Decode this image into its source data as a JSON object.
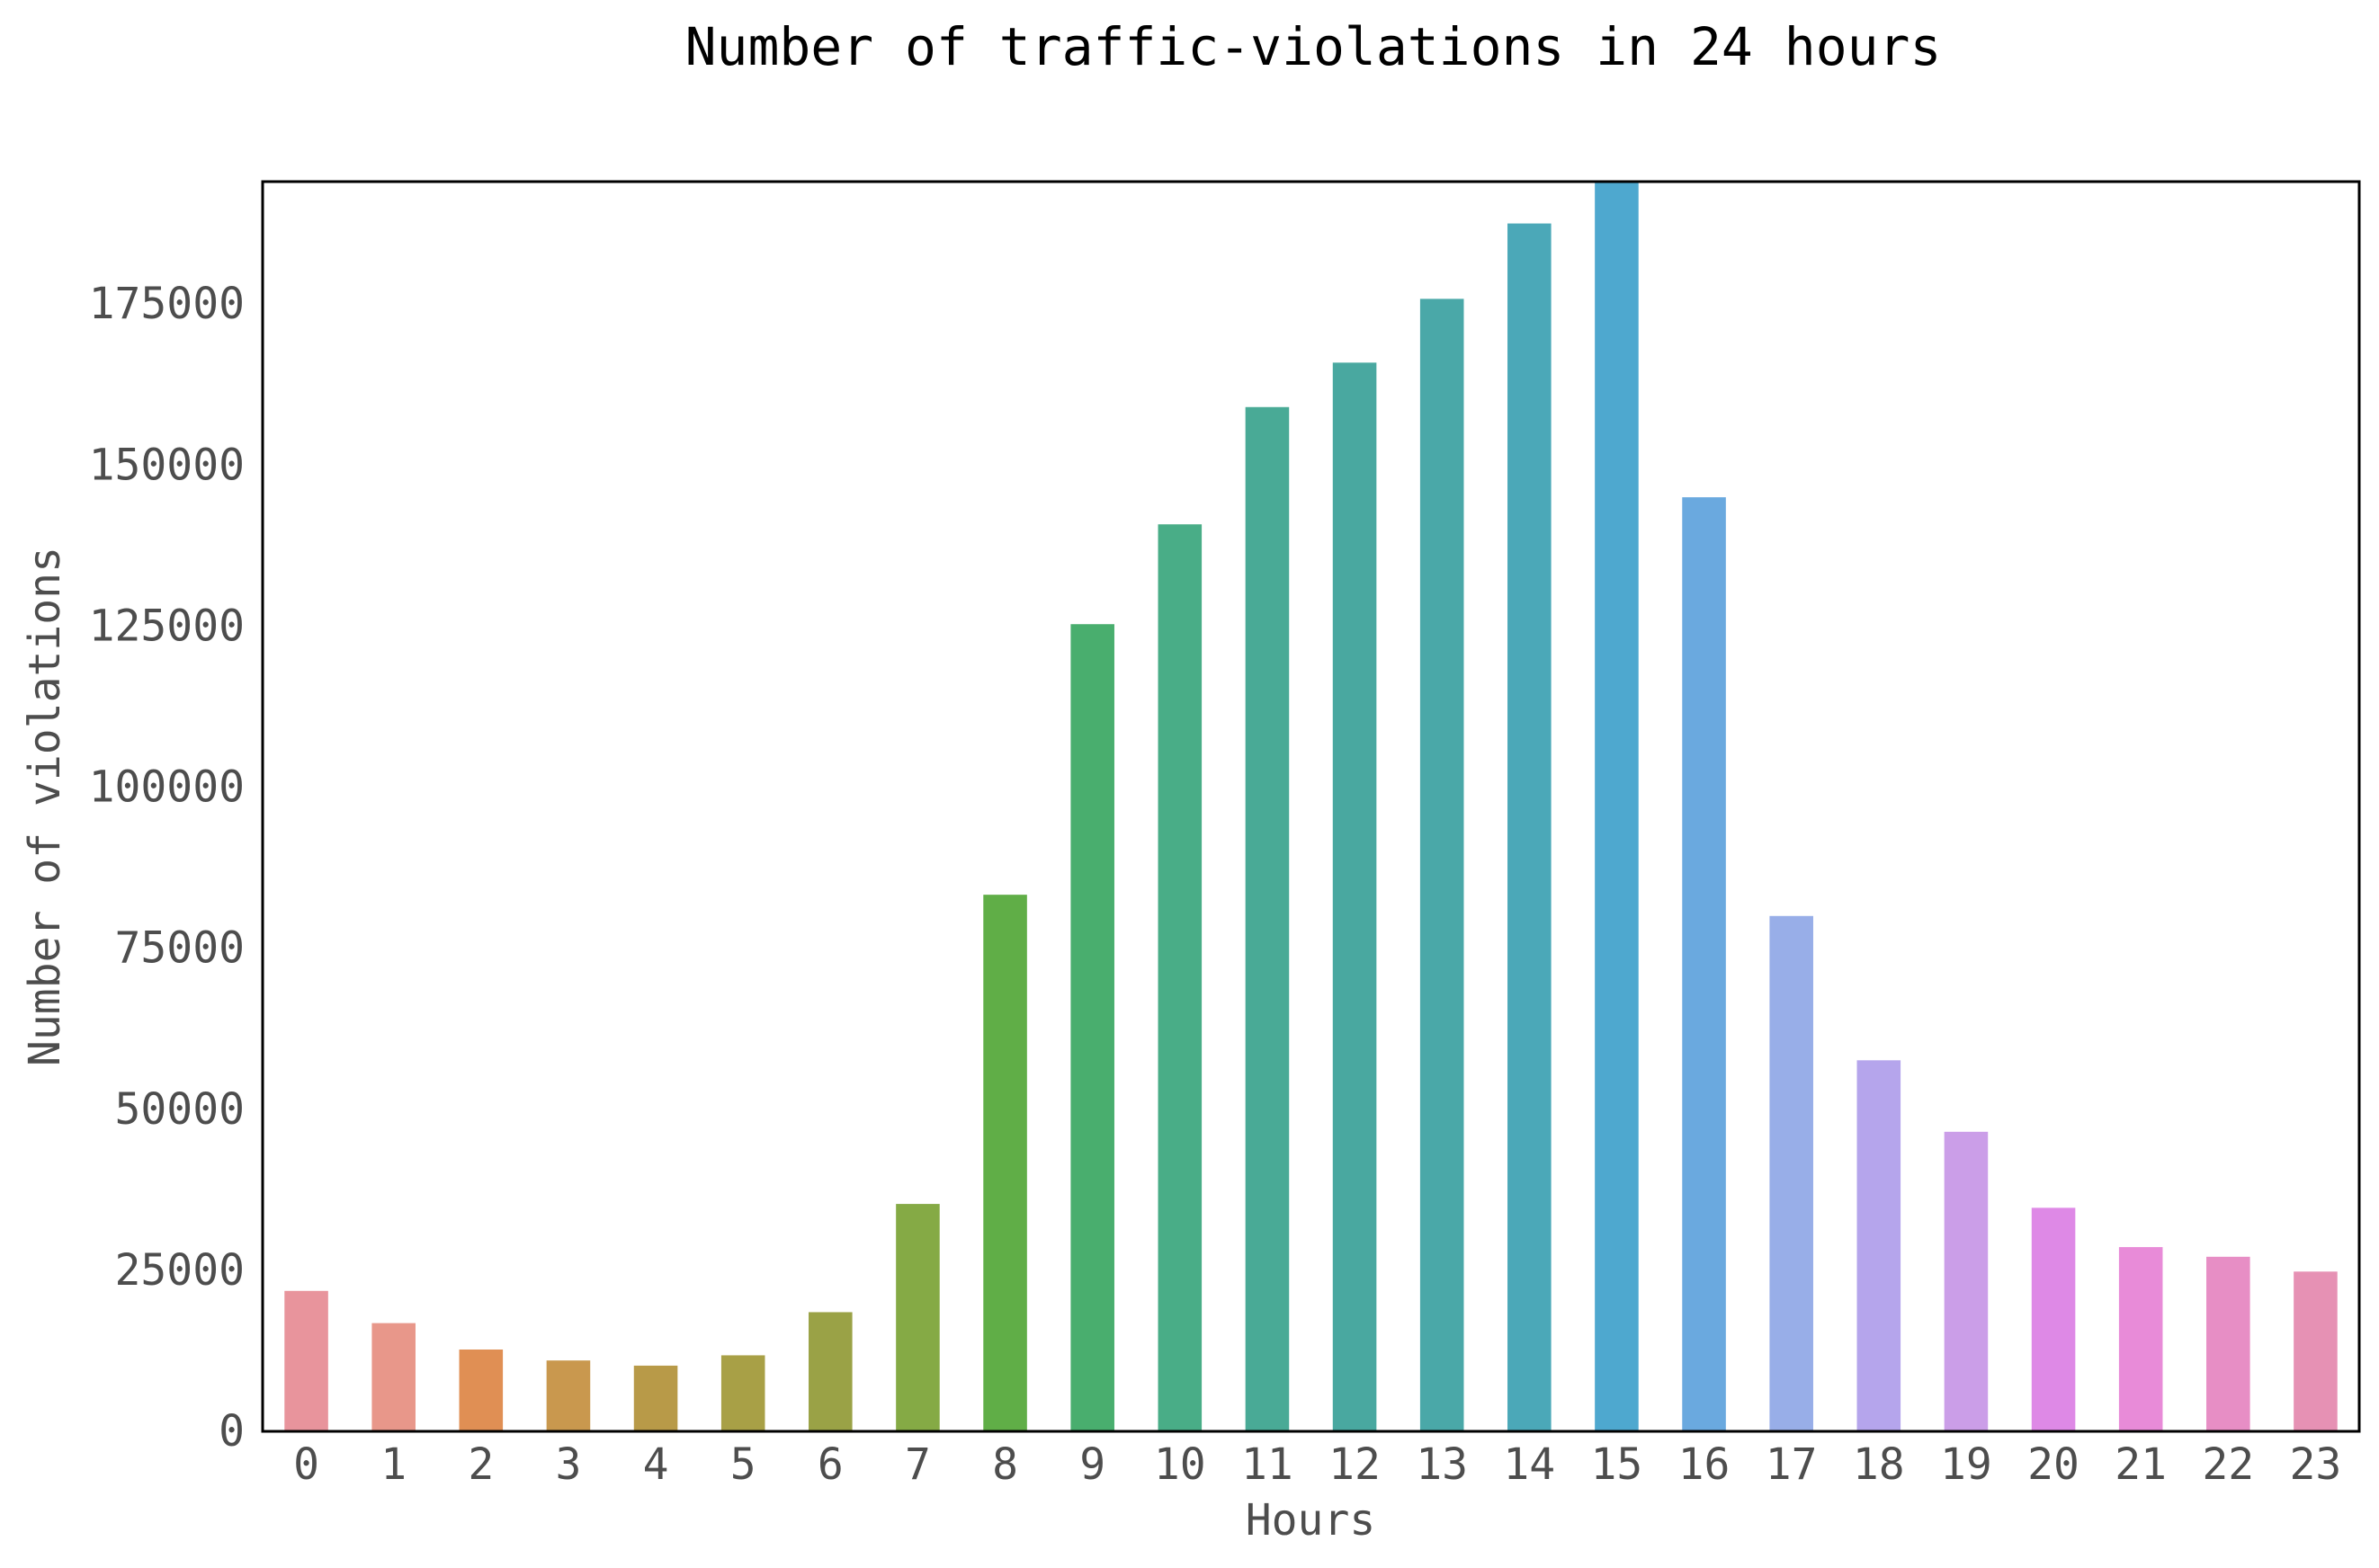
{
  "chart_data": {
    "type": "bar",
    "title": "Number of traffic-violations in 24 hours",
    "xlabel": "Hours",
    "ylabel": "Number of violations",
    "categories": [
      "0",
      "1",
      "2",
      "3",
      "4",
      "5",
      "6",
      "7",
      "8",
      "9",
      "10",
      "11",
      "12",
      "13",
      "14",
      "15",
      "16",
      "17",
      "18",
      "19",
      "20",
      "21",
      "22",
      "23"
    ],
    "values": [
      21800,
      16800,
      12700,
      11000,
      10200,
      11800,
      18500,
      35300,
      83300,
      125300,
      140800,
      159000,
      165900,
      175800,
      187500,
      194000,
      145000,
      80000,
      57600,
      46500,
      34700,
      28600,
      27100,
      24800
    ],
    "yticks": [
      0,
      25000,
      50000,
      75000,
      100000,
      125000,
      150000,
      175000
    ],
    "ylim": [
      0,
      194000
    ],
    "grid": false,
    "legend": "none",
    "colors": [
      "#e8949c",
      "#e8978a",
      "#e08f54",
      "#c9984e",
      "#b89a48",
      "#a8a046",
      "#9aa246",
      "#85aa45",
      "#60ae47",
      "#49ae6e",
      "#49ad87",
      "#49aa96",
      "#49a8a0",
      "#4aa8a8",
      "#4ba8b8",
      "#4ea8cf",
      "#6aa9df",
      "#98aee8",
      "#b5a5ec",
      "#cb9ee8",
      "#de89e6",
      "#e88bd8",
      "#e78ec5",
      "#e691b4"
    ],
    "frame_color": "#000000",
    "text_color": "#4d4d4d"
  }
}
